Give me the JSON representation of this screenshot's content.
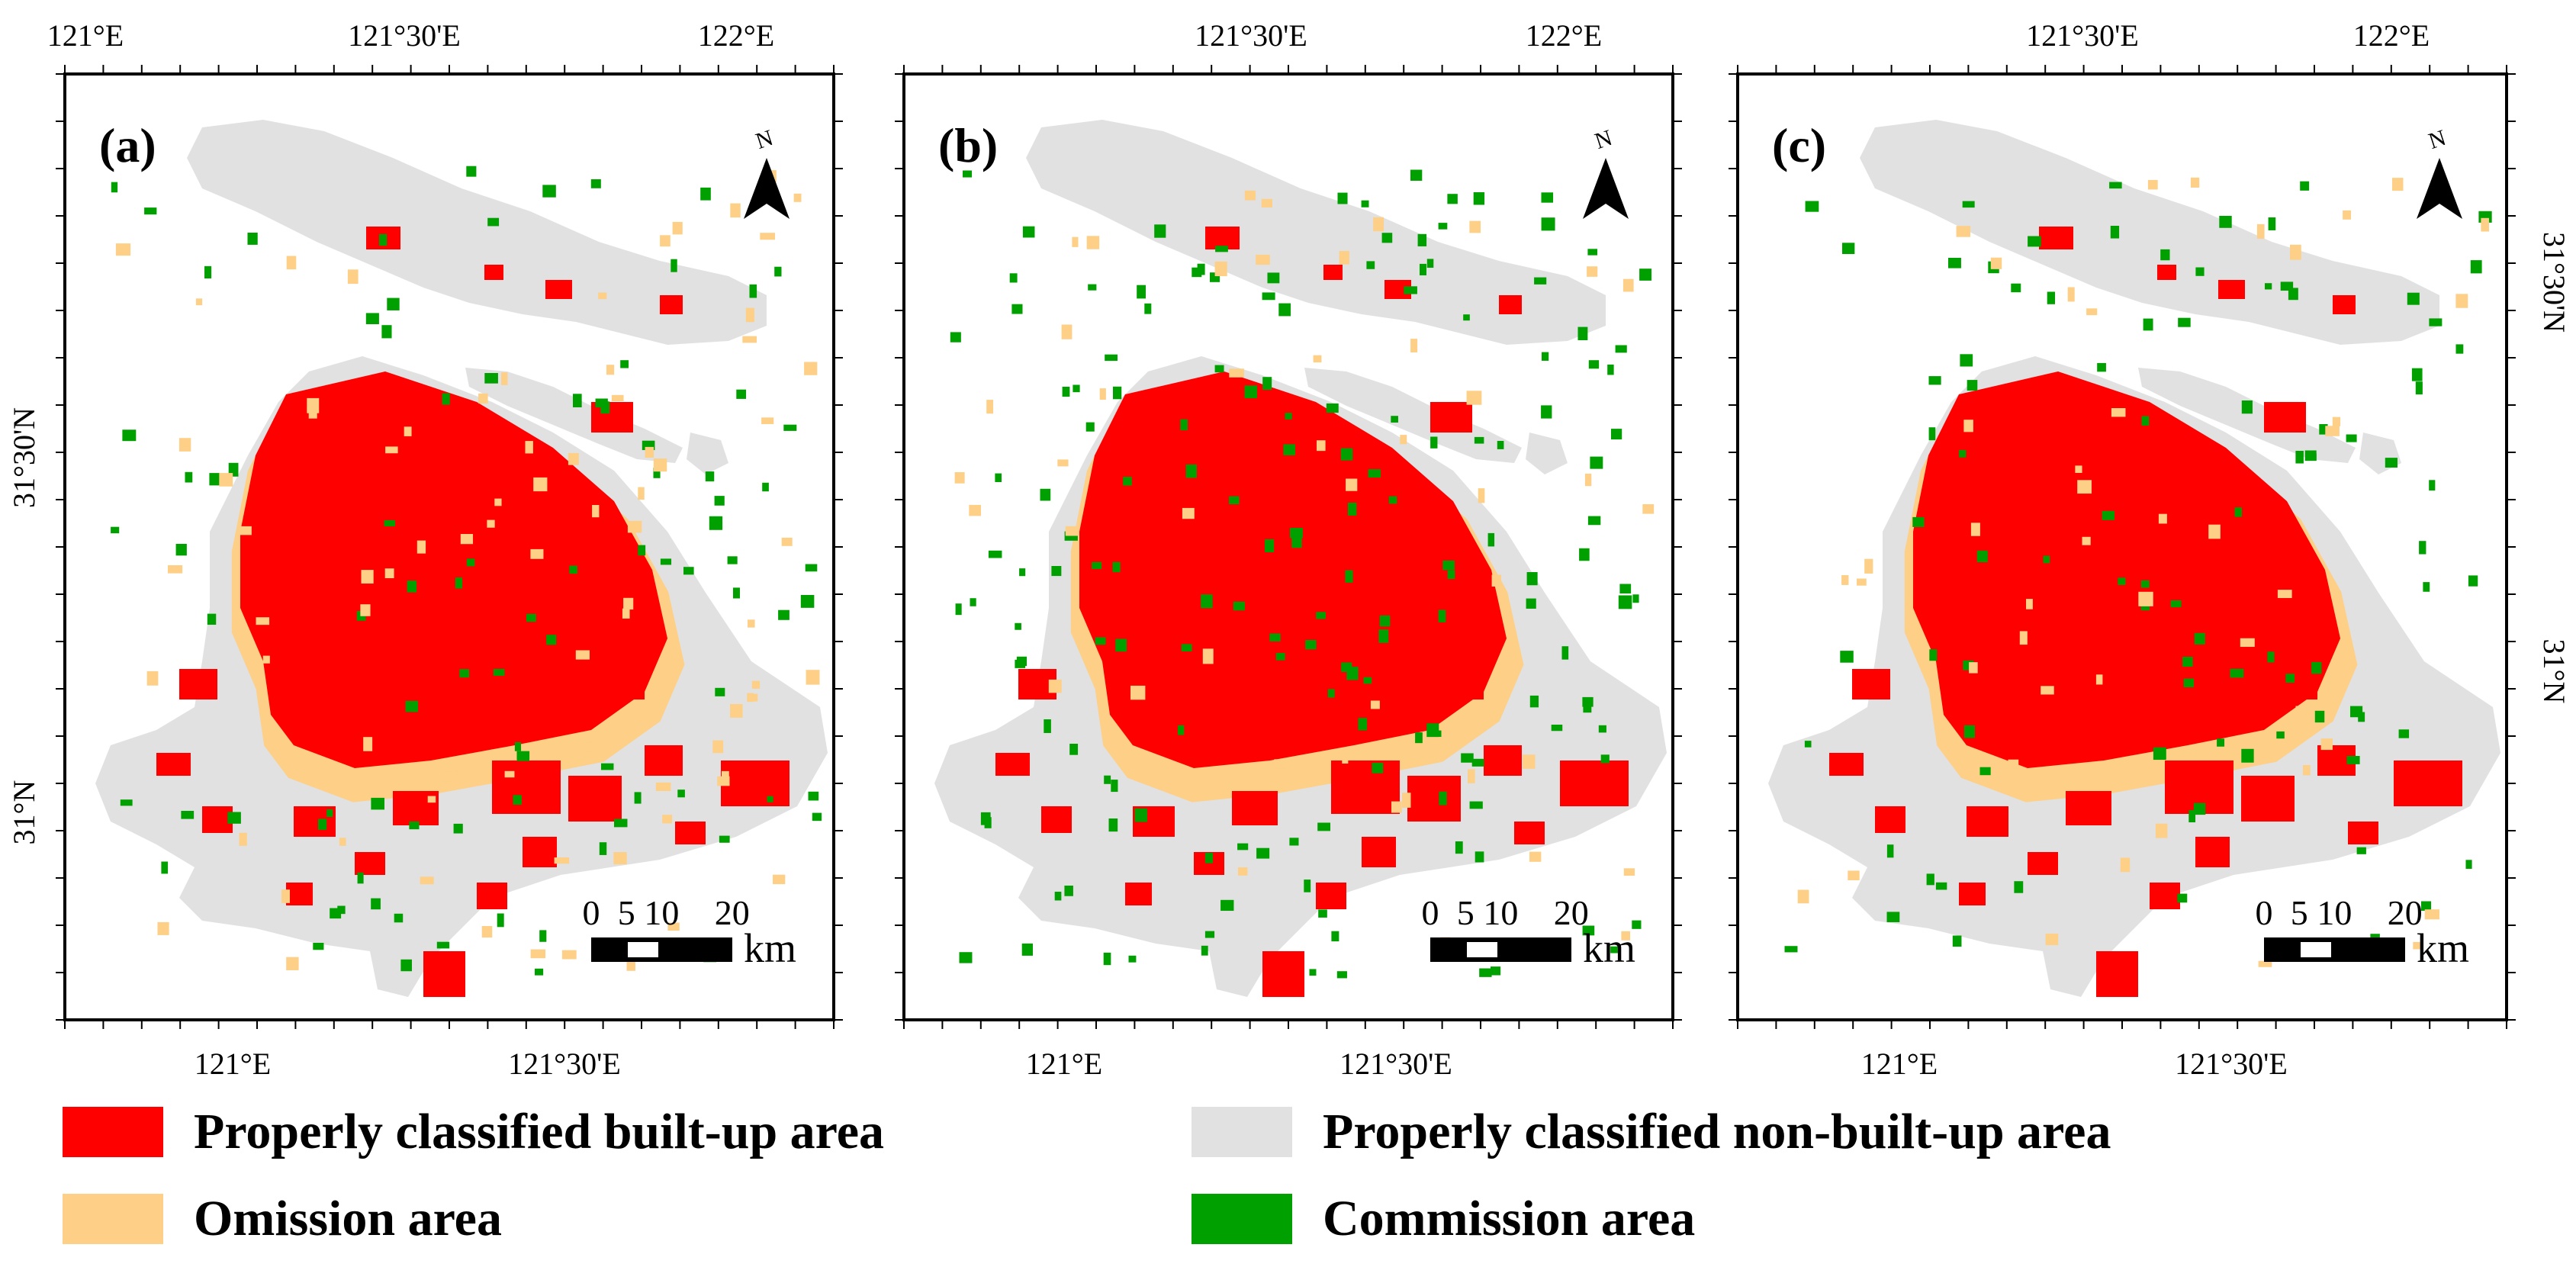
{
  "colors": {
    "built_up": "#fe0000",
    "non_built_up": "#e1e1e1",
    "omission": "#fdcf87",
    "commission": "#00a000",
    "frame": "#000000"
  },
  "top_axis_labels": [
    "121°E",
    "121°30'E",
    "122°E"
  ],
  "bottom_axis_labels": [
    "121°E",
    "121°30'E"
  ],
  "lat_labels": [
    "31°30'N",
    "31°N"
  ],
  "north_label": "N",
  "scale_bar": {
    "ticks": [
      "0",
      "5",
      "10",
      "20"
    ],
    "unit": "km"
  },
  "panels": [
    {
      "label": "(a)"
    },
    {
      "label": "(b)"
    },
    {
      "label": "(c)"
    }
  ],
  "legend": [
    {
      "label": "Properly classified built-up area",
      "color_key": "built_up"
    },
    {
      "label": "Properly classified non-built-up area",
      "color_key": "non_built_up"
    },
    {
      "label": "Omission area",
      "color_key": "omission"
    },
    {
      "label": "Commission area",
      "color_key": "commission"
    }
  ]
}
